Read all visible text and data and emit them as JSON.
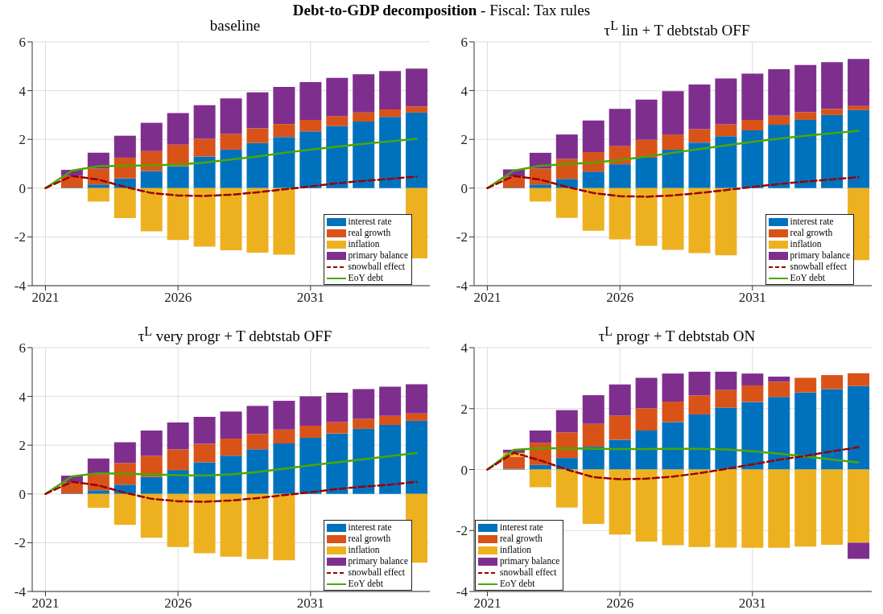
{
  "chart_data": [
    {
      "type": "bar",
      "title": "baseline",
      "annotations": [
        "Debt-to-GDP decomposition",
        "- Fiscal: Tax rules"
      ],
      "stacked": true,
      "x": [
        2021,
        2022,
        2023,
        2024,
        2025,
        2026,
        2027,
        2028,
        2029,
        2030,
        2031,
        2032,
        2033,
        2034,
        2035
      ],
      "xlim": [
        2020.5,
        2035.5
      ],
      "xticks": [
        2021,
        2026,
        2031
      ],
      "ylim": [
        -4,
        6
      ],
      "yticks": [
        -4,
        -2,
        0,
        2,
        4,
        6
      ],
      "grid": true,
      "legend": "bottom right",
      "series": [
        {
          "name": "interest rate",
          "color": "#0072bd",
          "values": [
            0,
            0.02,
            0.15,
            0.4,
            0.7,
            0.9,
            1.3,
            1.58,
            1.85,
            2.1,
            2.33,
            2.55,
            2.73,
            2.92,
            3.1
          ]
        },
        {
          "name": "real growth",
          "color": "#d95319",
          "values": [
            0,
            0.48,
            0.65,
            0.85,
            0.82,
            0.88,
            0.72,
            0.65,
            0.6,
            0.53,
            0.47,
            0.4,
            0.37,
            0.31,
            0.25
          ]
        },
        {
          "name": "inflation",
          "color": "#edb120",
          "values": [
            0,
            0,
            -0.55,
            -1.23,
            -1.77,
            -2.13,
            -2.4,
            -2.55,
            -2.65,
            -2.73,
            null,
            null,
            null,
            null,
            -2.88
          ]
        },
        {
          "name": "primary balance",
          "color": "#7e2f8e",
          "values": [
            0,
            0.25,
            0.65,
            0.9,
            1.16,
            1.3,
            1.38,
            1.45,
            1.48,
            1.52,
            1.55,
            1.57,
            1.57,
            1.57,
            1.55
          ]
        },
        {
          "name": "snowball effect",
          "type": "line",
          "line_style": "dashed",
          "color": "#990000",
          "values": [
            0,
            0.5,
            0.35,
            0.05,
            -0.2,
            -0.3,
            -0.32,
            -0.27,
            -0.17,
            -0.05,
            0.07,
            0.2,
            0.3,
            0.38,
            0.48
          ]
        },
        {
          "name": "EoY debt",
          "type": "line",
          "line_style": "solid",
          "color": "#4da600",
          "values": [
            0,
            0.72,
            0.9,
            0.92,
            0.93,
            0.97,
            1.05,
            1.17,
            1.3,
            1.45,
            1.58,
            1.7,
            1.82,
            1.92,
            2.02
          ]
        }
      ]
    },
    {
      "type": "bar",
      "title": "τ$^{L}$ lin + T debtstab OFF",
      "stacked": true,
      "x": [
        2021,
        2022,
        2023,
        2024,
        2025,
        2026,
        2027,
        2028,
        2029,
        2030,
        2031,
        2032,
        2033,
        2034,
        2035
      ],
      "xlim": [
        2020.5,
        2035.5
      ],
      "xticks": [
        2021,
        2026,
        2031
      ],
      "ylim": [
        -4,
        6
      ],
      "yticks": [
        -4,
        -2,
        0,
        2,
        4,
        6
      ],
      "grid": true,
      "legend": "bottom right",
      "series": [
        {
          "name": "interest rate",
          "color": "#0072bd",
          "values": [
            0,
            0.02,
            0.15,
            0.38,
            0.68,
            0.98,
            1.25,
            1.58,
            1.87,
            2.13,
            2.37,
            2.6,
            2.8,
            3.0,
            3.2
          ]
        },
        {
          "name": "real growth",
          "color": "#d95319",
          "values": [
            0,
            0.45,
            0.65,
            0.82,
            0.8,
            0.75,
            0.73,
            0.62,
            0.55,
            0.49,
            0.43,
            0.37,
            0.32,
            0.25,
            0.17
          ]
        },
        {
          "name": "inflation",
          "color": "#edb120",
          "values": [
            0,
            0,
            -0.55,
            -1.22,
            -1.75,
            -2.1,
            -2.37,
            -2.53,
            -2.66,
            -2.75,
            null,
            null,
            null,
            null,
            -2.95
          ]
        },
        {
          "name": "primary balance",
          "color": "#7e2f8e",
          "values": [
            0,
            0.3,
            0.65,
            1.0,
            1.29,
            1.52,
            1.65,
            1.78,
            1.83,
            1.88,
            1.9,
            1.91,
            1.93,
            1.92,
            1.93
          ]
        },
        {
          "name": "snowball effect",
          "type": "line",
          "line_style": "dashed",
          "color": "#990000",
          "values": [
            0,
            0.5,
            0.35,
            0.05,
            -0.2,
            -0.33,
            -0.35,
            -0.3,
            -0.2,
            -0.08,
            0.05,
            0.17,
            0.27,
            0.36,
            0.45
          ]
        },
        {
          "name": "EoY debt",
          "type": "line",
          "line_style": "solid",
          "color": "#4da600",
          "values": [
            0,
            0.72,
            0.92,
            0.98,
            1.05,
            1.15,
            1.3,
            1.45,
            1.6,
            1.75,
            1.9,
            2.03,
            2.15,
            2.25,
            2.35
          ]
        }
      ]
    },
    {
      "type": "bar",
      "title": "τ$^{L}$ very progr + T debtstab OFF",
      "stacked": true,
      "x": [
        2021,
        2022,
        2023,
        2024,
        2025,
        2026,
        2027,
        2028,
        2029,
        2030,
        2031,
        2032,
        2033,
        2034,
        2035
      ],
      "xlim": [
        2020.5,
        2035.5
      ],
      "xticks": [
        2021,
        2026,
        2031
      ],
      "ylim": [
        -4,
        6
      ],
      "yticks": [
        -4,
        -2,
        0,
        2,
        4,
        6
      ],
      "grid": true,
      "legend": "bottom right",
      "series": [
        {
          "name": "interest rate",
          "color": "#0072bd",
          "values": [
            0,
            0.02,
            0.15,
            0.38,
            0.7,
            0.98,
            1.3,
            1.57,
            1.83,
            2.07,
            2.3,
            2.48,
            2.67,
            2.83,
            3.0
          ]
        },
        {
          "name": "real growth",
          "color": "#d95319",
          "values": [
            0,
            0.45,
            0.65,
            0.89,
            0.86,
            0.85,
            0.76,
            0.7,
            0.63,
            0.57,
            0.5,
            0.47,
            0.41,
            0.37,
            0.3
          ]
        },
        {
          "name": "inflation",
          "color": "#edb120",
          "values": [
            0,
            0,
            -0.57,
            -1.27,
            -1.8,
            -2.18,
            -2.43,
            -2.57,
            -2.67,
            -2.72,
            null,
            null,
            null,
            null,
            -2.82
          ]
        },
        {
          "name": "primary balance",
          "color": "#7e2f8e",
          "values": [
            0,
            0.28,
            0.65,
            0.85,
            1.04,
            1.1,
            1.1,
            1.11,
            1.15,
            1.18,
            1.2,
            1.2,
            1.22,
            1.2,
            1.2
          ]
        },
        {
          "name": "snowball effect",
          "type": "line",
          "line_style": "dashed",
          "color": "#990000",
          "values": [
            0,
            0.5,
            0.35,
            0.05,
            -0.2,
            -0.3,
            -0.32,
            -0.27,
            -0.17,
            -0.05,
            0.07,
            0.2,
            0.3,
            0.38,
            0.5
          ]
        },
        {
          "name": "EoY debt",
          "type": "line",
          "line_style": "solid",
          "color": "#4da600",
          "values": [
            0,
            0.72,
            0.85,
            0.83,
            0.8,
            0.77,
            0.75,
            0.8,
            0.9,
            1.03,
            1.17,
            1.3,
            1.42,
            1.55,
            1.68
          ]
        }
      ]
    },
    {
      "type": "bar",
      "title": "τ$^{L}$ progr + T debtstab ON",
      "stacked": true,
      "x": [
        2021,
        2022,
        2023,
        2024,
        2025,
        2026,
        2027,
        2028,
        2029,
        2030,
        2031,
        2032,
        2033,
        2034,
        2035
      ],
      "xlim": [
        2020.5,
        2035.5
      ],
      "xticks": [
        2021,
        2026,
        2031
      ],
      "ylim": [
        -4,
        4
      ],
      "yticks": [
        -4,
        -2,
        0,
        2,
        4
      ],
      "grid": true,
      "legend": "bottom left",
      "series": [
        {
          "name": "interest rate",
          "color": "#0072bd",
          "values": [
            0,
            0.02,
            0.15,
            0.38,
            0.75,
            0.98,
            1.28,
            1.56,
            1.81,
            2.03,
            2.22,
            2.38,
            2.53,
            2.64,
            2.74
          ]
        },
        {
          "name": "real growth",
          "color": "#d95319",
          "values": [
            0,
            0.4,
            0.73,
            0.84,
            0.75,
            0.79,
            0.73,
            0.67,
            0.62,
            0.58,
            0.54,
            0.5,
            0.48,
            0.46,
            0.42
          ]
        },
        {
          "name": "inflation",
          "color": "#edb120",
          "values": [
            0,
            0.13,
            -0.58,
            -1.25,
            -1.78,
            -2.13,
            -2.36,
            -2.48,
            -2.54,
            -2.56,
            -2.57,
            -2.57,
            -2.53,
            -2.47,
            -2.4
          ]
        },
        {
          "name": "primary balance",
          "color": "#7e2f8e",
          "values": [
            0,
            0.1,
            0.4,
            0.73,
            0.94,
            1.02,
            1.0,
            0.92,
            0.78,
            0.6,
            0.39,
            0.17,
            null,
            null,
            -0.53
          ]
        },
        {
          "name": "snowball effect",
          "type": "line",
          "line_style": "dashed",
          "color": "#990000",
          "values": [
            0,
            0.55,
            0.3,
            0.0,
            -0.25,
            -0.32,
            -0.3,
            -0.23,
            -0.12,
            0.02,
            0.17,
            0.32,
            0.45,
            0.6,
            0.73
          ]
        },
        {
          "name": "EoY debt",
          "type": "line",
          "line_style": "solid",
          "color": "#4da600",
          "values": [
            0,
            0.65,
            0.7,
            0.7,
            0.68,
            0.67,
            0.67,
            0.68,
            0.68,
            0.66,
            0.6,
            0.52,
            0.43,
            0.33,
            0.23
          ]
        }
      ]
    }
  ]
}
